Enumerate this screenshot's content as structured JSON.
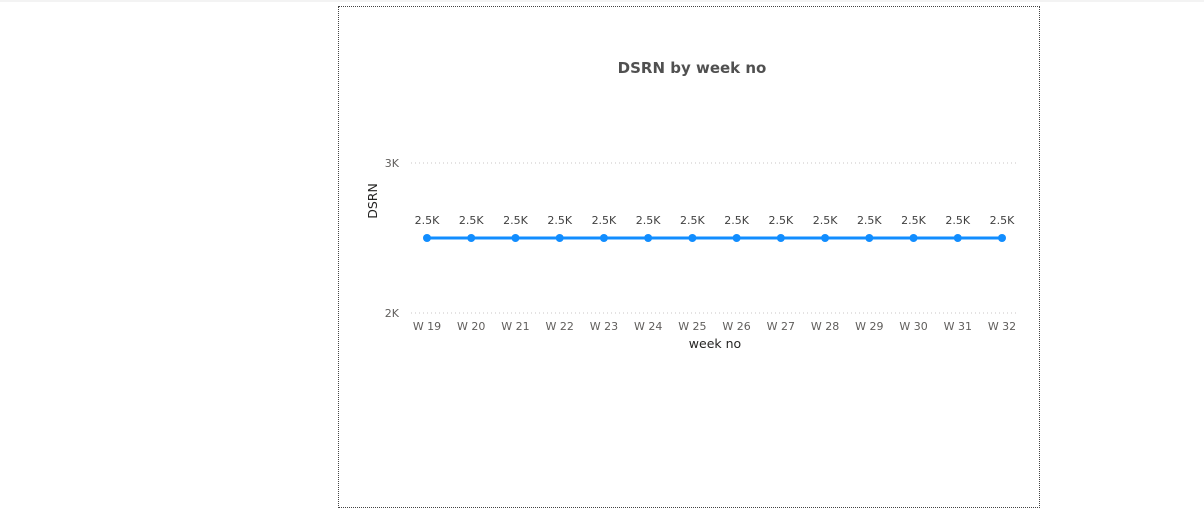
{
  "colors": {
    "series": "#118DFF",
    "grid": "#c8c6c4"
  },
  "chart_data": {
    "type": "line",
    "title": "DSRN by week no",
    "xlabel": "week no",
    "ylabel": "DSRN",
    "categories": [
      "W 19",
      "W 20",
      "W 21",
      "W 22",
      "W 23",
      "W 24",
      "W 25",
      "W 26",
      "W 27",
      "W 28",
      "W 29",
      "W 30",
      "W 31",
      "W 32"
    ],
    "series": [
      {
        "values": [
          2500,
          2500,
          2500,
          2500,
          2500,
          2500,
          2500,
          2500,
          2500,
          2500,
          2500,
          2500,
          2500,
          2500
        ],
        "data_labels": [
          "2.5K",
          "2.5K",
          "2.5K",
          "2.5K",
          "2.5K",
          "2.5K",
          "2.5K",
          "2.5K",
          "2.5K",
          "2.5K",
          "2.5K",
          "2.5K",
          "2.5K",
          "2.5K"
        ]
      }
    ],
    "ylim": [
      2000,
      3000
    ],
    "yticks": [
      {
        "value": 2000,
        "label": "2K"
      },
      {
        "value": 3000,
        "label": "3K"
      }
    ],
    "grid": true,
    "legend": "none"
  }
}
